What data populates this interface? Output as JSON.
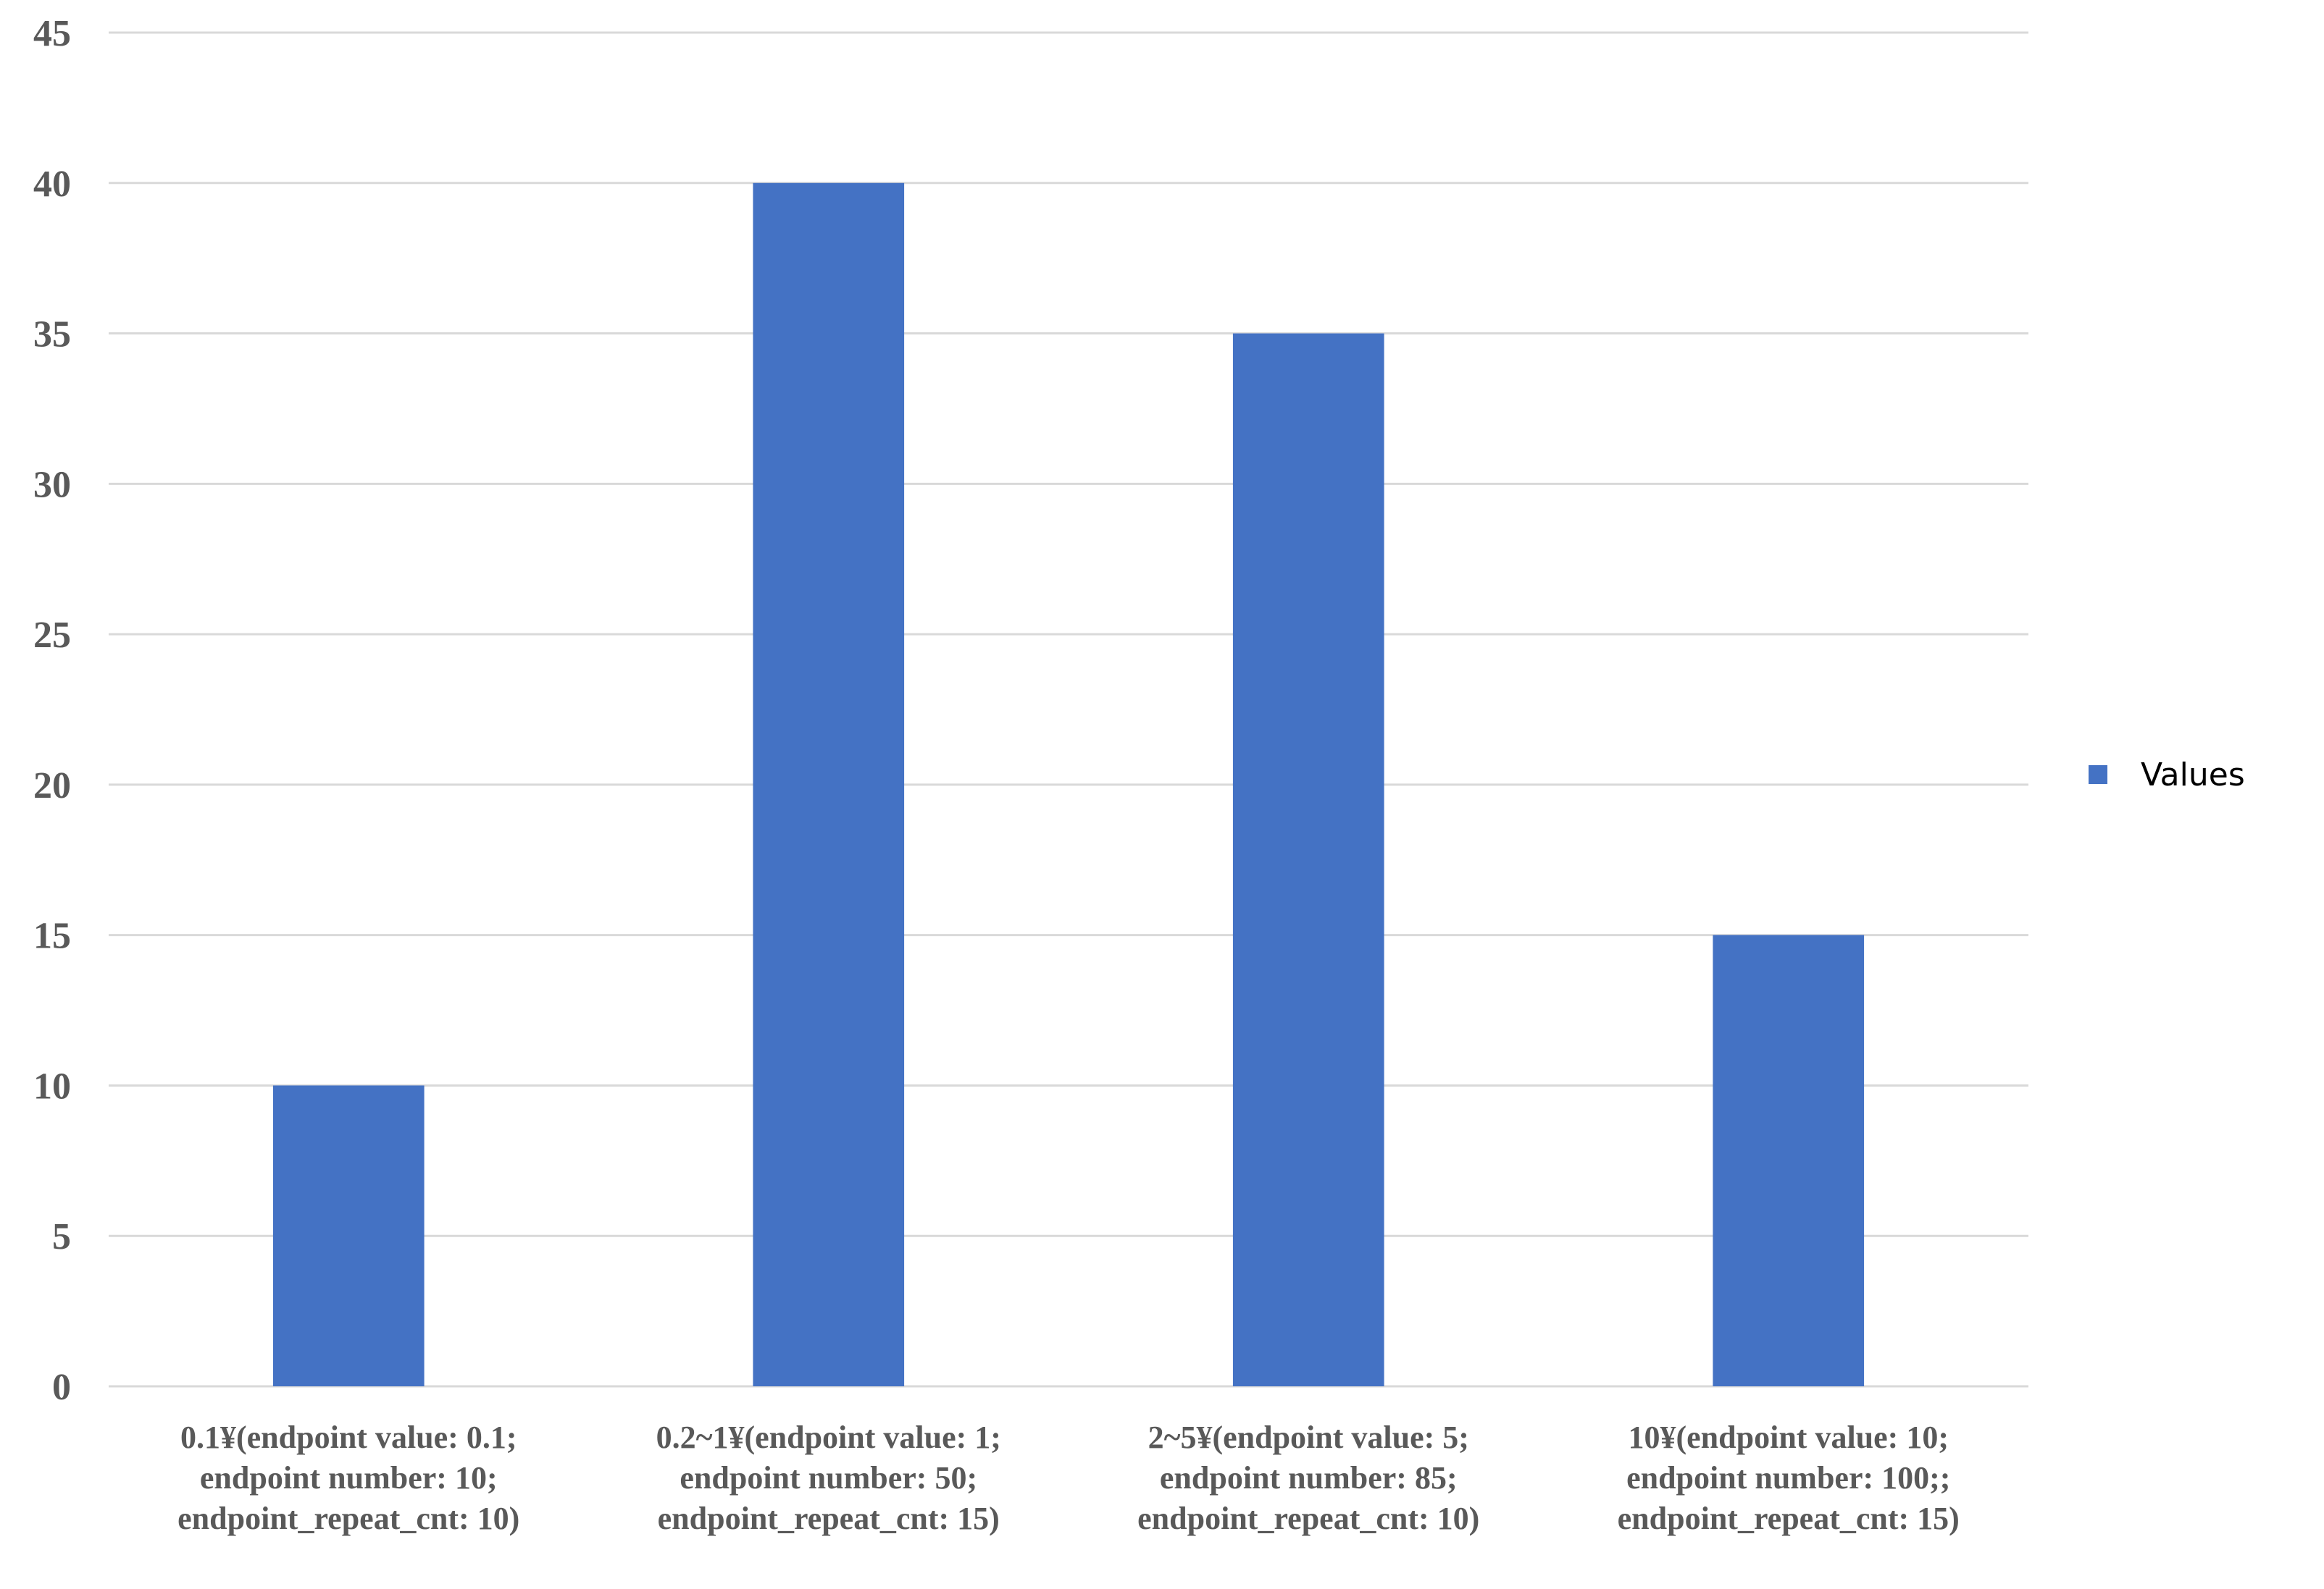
{
  "chart_data": {
    "type": "bar",
    "categories": [
      [
        "0.1¥(endpoint value: 0.1;",
        "endpoint number: 10;",
        "endpoint_repeat_cnt: 10)"
      ],
      [
        "0.2~1¥(endpoint value: 1;",
        "endpoint number: 50;",
        "endpoint_repeat_cnt: 15)"
      ],
      [
        "2~5¥(endpoint value: 5;",
        "endpoint number: 85;",
        "endpoint_repeat_cnt: 10)"
      ],
      [
        "10¥(endpoint value: 10;",
        "endpoint number: 100;;",
        "endpoint_repeat_cnt: 15)"
      ]
    ],
    "series": [
      {
        "name": "Values",
        "values": [
          10,
          40,
          35,
          15
        ],
        "color": "#4472c4"
      }
    ],
    "ylim": [
      0,
      45
    ],
    "yticks": [
      0,
      5,
      10,
      15,
      20,
      25,
      30,
      35,
      40,
      45
    ],
    "grid": true,
    "legend": "right"
  }
}
